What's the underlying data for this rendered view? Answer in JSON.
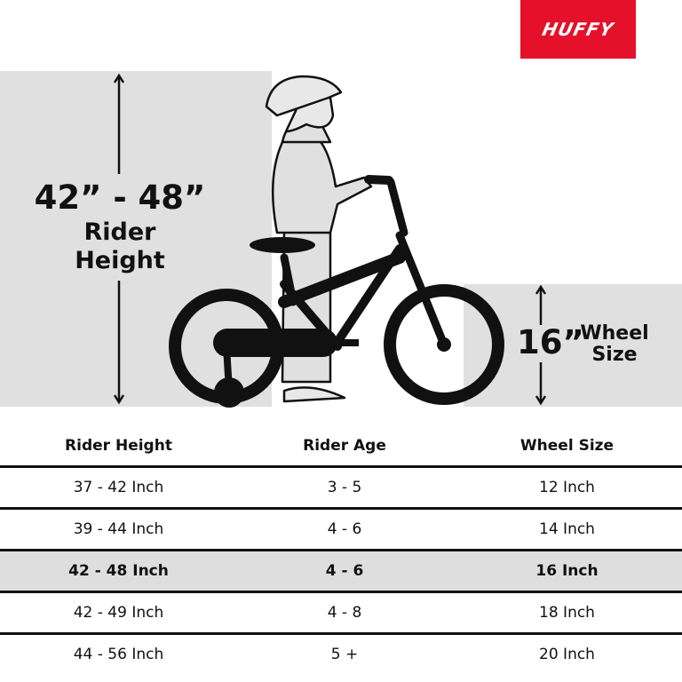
{
  "brand": {
    "logo_text": "HUFFY",
    "color": "#e5112a"
  },
  "hero": {
    "rider_height_value": "42” - 48”",
    "rider_height_line1": "Rider",
    "rider_height_line2": "Height",
    "wheel_size_value": "16”",
    "wheel_size_line1": "Wheel",
    "wheel_size_line2": "Size"
  },
  "size_table": {
    "headers": [
      "Rider Height",
      "Rider Age",
      "Wheel Size"
    ],
    "highlighted_row": 2,
    "rows": [
      [
        "37 - 42 Inch",
        "3 - 5",
        "12 Inch"
      ],
      [
        "39 - 44 Inch",
        "4 - 6",
        "14 Inch"
      ],
      [
        "42 - 48 Inch",
        "4 - 6",
        "16 Inch"
      ],
      [
        "42 - 49 Inch",
        "4 - 8",
        "18 Inch"
      ],
      [
        "44 - 56 Inch",
        "5 +",
        "20 Inch"
      ]
    ]
  }
}
